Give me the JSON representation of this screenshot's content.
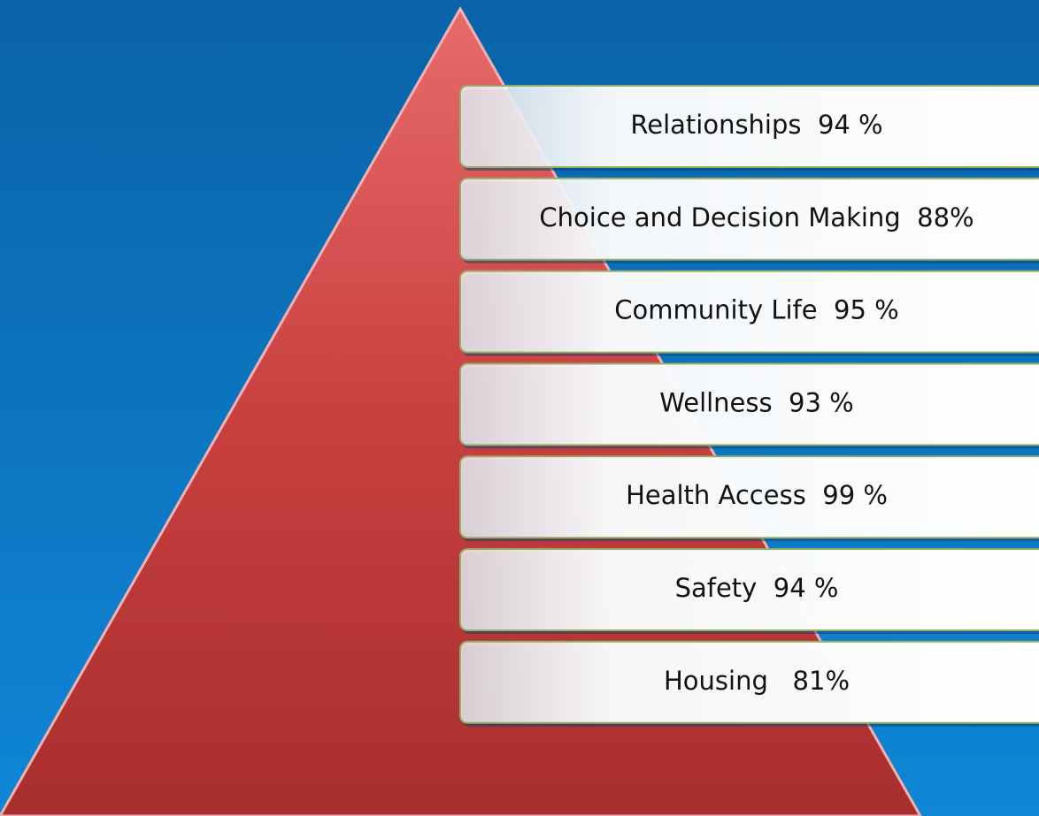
{
  "pyramid": {
    "items": [
      {
        "label": "Relationships  94 %"
      },
      {
        "label": "Choice and Decision Making  88%"
      },
      {
        "label": "Community Life  95 %"
      },
      {
        "label": "Wellness  93 %"
      },
      {
        "label": "Health Access  99 %"
      },
      {
        "label": "Safety  94 %"
      },
      {
        "label": "Housing   81%"
      }
    ]
  }
}
